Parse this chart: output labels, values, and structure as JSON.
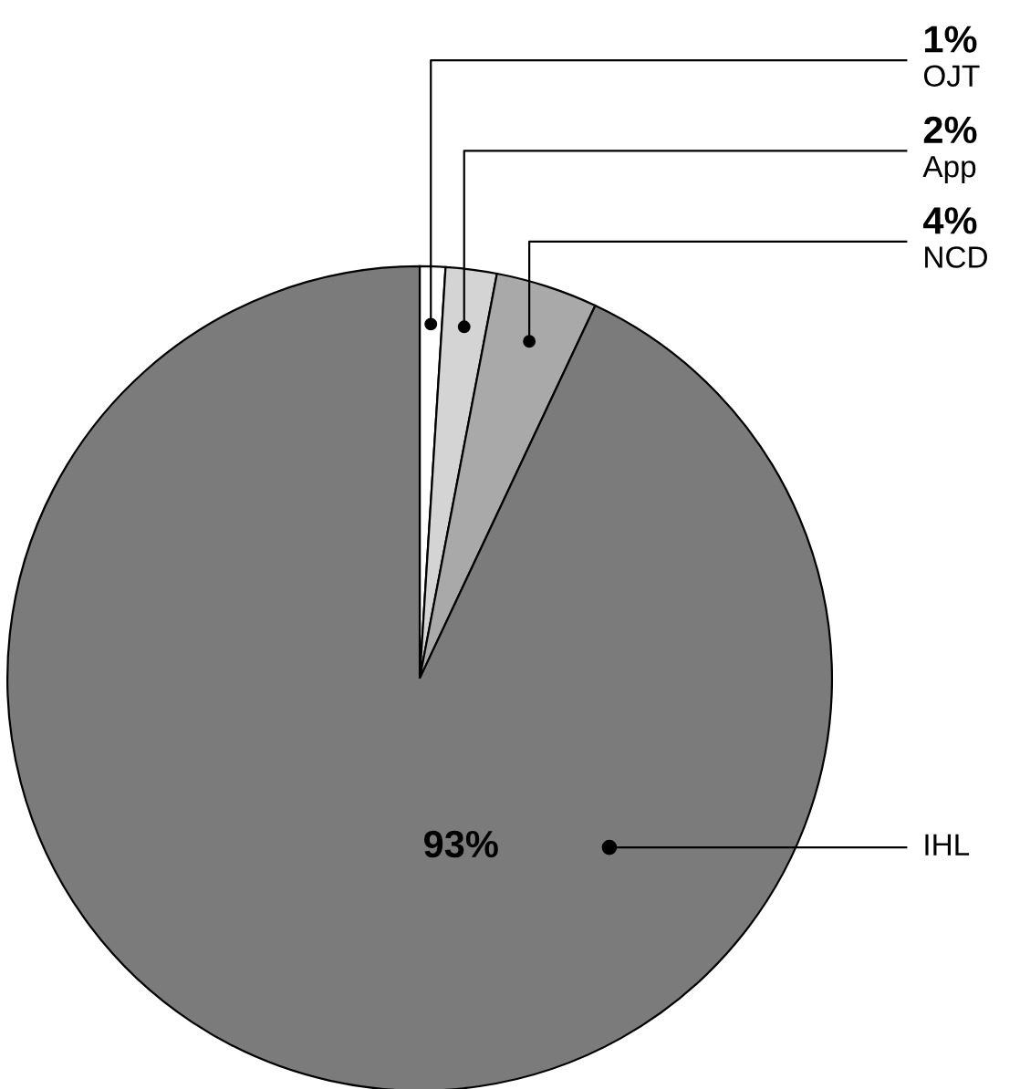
{
  "chart_data": {
    "type": "pie",
    "categories": [
      "OJT",
      "App",
      "NCD",
      "IHL"
    ],
    "values": [
      1,
      2,
      4,
      93
    ],
    "value_labels": [
      "1%",
      "2%",
      "4%",
      "93%"
    ],
    "colors": [
      "#ffffff",
      "#d4d4d4",
      "#a9a9a9",
      "#7b7b7b"
    ],
    "legend": false
  }
}
